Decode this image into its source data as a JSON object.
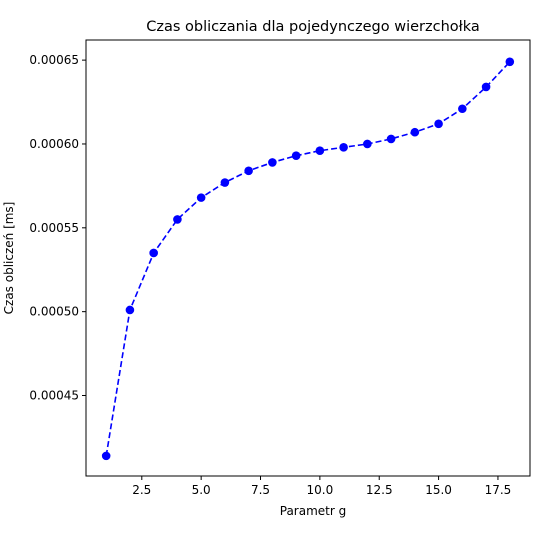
{
  "chart_data": {
    "type": "line",
    "title": "Czas obliczania dla pojedynczego wierzchołka",
    "xlabel": "Parametr g",
    "ylabel": "Czas obliczeń [ms]",
    "xlim": [
      0.15,
      18.85
    ],
    "ylim": [
      0.000402,
      0.000662
    ],
    "xticks": [
      2.5,
      5.0,
      7.5,
      10.0,
      12.5,
      15.0,
      17.5
    ],
    "xtick_labels": [
      "2.5",
      "5.0",
      "7.5",
      "10.0",
      "12.5",
      "15.0",
      "17.5"
    ],
    "yticks": [
      0.00045,
      0.0005,
      0.00055,
      0.0006,
      0.00065
    ],
    "ytick_labels": [
      "0.00045",
      "0.00050",
      "0.00055",
      "0.00060",
      "0.00065"
    ],
    "grid": false,
    "series": [
      {
        "color": "#0000ff",
        "line_style": "dashed",
        "marker": "circle",
        "x": [
          1,
          2,
          3,
          4,
          5,
          6,
          7,
          8,
          9,
          10,
          11,
          12,
          13,
          14,
          15,
          16,
          17,
          18
        ],
        "y": [
          0.000414,
          0.000501,
          0.000535,
          0.000555,
          0.000568,
          0.000577,
          0.000584,
          0.000589,
          0.000593,
          0.000596,
          0.000598,
          0.0006,
          0.000603,
          0.000607,
          0.000612,
          0.000621,
          0.000634,
          0.000649
        ]
      }
    ]
  }
}
